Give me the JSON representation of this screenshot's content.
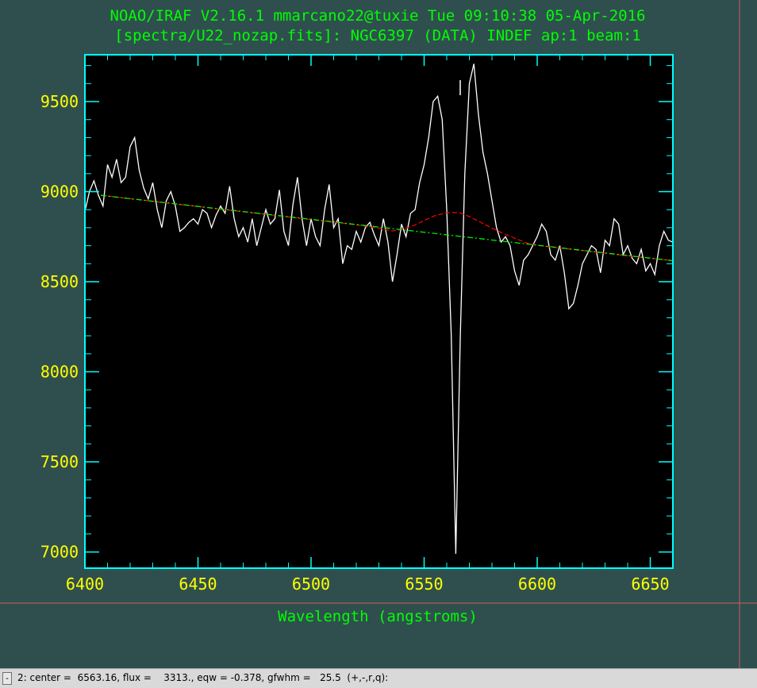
{
  "window": {
    "title_line1": "NOAO/IRAF V2.16.1 mmarcano22@tuxie Tue 09:10:38 05-Apr-2016",
    "title_line2": "[spectra/U22_nozap.fits]: NGC6397 (DATA) INDEF ap:1 beam:1",
    "background_color": "#2f4f4f",
    "frame_color": "#00ffff",
    "label_color": "#ffff00",
    "title_color": "#00ff00"
  },
  "status": {
    "menu_label": "-",
    "text": "2: center =  6563.16, flux =    3313., eqw = -0.378, gfwhm =   25.5  (+,-,r,q):"
  },
  "chart_data": {
    "type": "line",
    "title": "NOAO/IRAF V2.16.1 mmarcano22@tuxie Tue 09:10:38 05-Apr-2016",
    "subtitle": "[spectra/U22_nozap.fits]: NGC6397 (DATA) INDEF ap:1 beam:1",
    "xlabel": "Wavelength (angstroms)",
    "ylabel": "",
    "xlim": [
      6400,
      6660
    ],
    "ylim": [
      6910,
      9760
    ],
    "xticks": [
      6400,
      6450,
      6500,
      6550,
      6600,
      6650
    ],
    "yticks": [
      7000,
      7500,
      8000,
      8500,
      9000,
      9500
    ],
    "grid": false,
    "marker_x": 6563.16,
    "series": [
      {
        "name": "",
        "color": "#ffffff",
        "style": "solid",
        "points": [
          [
            6400,
            8890
          ],
          [
            6402,
            9000
          ],
          [
            6404,
            9060
          ],
          [
            6406,
            8980
          ],
          [
            6408,
            8920
          ],
          [
            6410,
            9150
          ],
          [
            6412,
            9080
          ],
          [
            6414,
            9180
          ],
          [
            6416,
            9050
          ],
          [
            6418,
            9080
          ],
          [
            6420,
            9250
          ],
          [
            6422,
            9300
          ],
          [
            6424,
            9120
          ],
          [
            6426,
            9020
          ],
          [
            6428,
            8960
          ],
          [
            6430,
            9050
          ],
          [
            6432,
            8900
          ],
          [
            6434,
            8800
          ],
          [
            6436,
            8950
          ],
          [
            6438,
            9000
          ],
          [
            6440,
            8920
          ],
          [
            6442,
            8780
          ],
          [
            6444,
            8800
          ],
          [
            6446,
            8830
          ],
          [
            6448,
            8850
          ],
          [
            6450,
            8820
          ],
          [
            6452,
            8900
          ],
          [
            6454,
            8880
          ],
          [
            6456,
            8800
          ],
          [
            6458,
            8870
          ],
          [
            6460,
            8920
          ],
          [
            6462,
            8880
          ],
          [
            6464,
            9030
          ],
          [
            6466,
            8850
          ],
          [
            6468,
            8750
          ],
          [
            6470,
            8800
          ],
          [
            6472,
            8720
          ],
          [
            6474,
            8850
          ],
          [
            6476,
            8700
          ],
          [
            6478,
            8800
          ],
          [
            6480,
            8900
          ],
          [
            6482,
            8820
          ],
          [
            6484,
            8850
          ],
          [
            6486,
            9010
          ],
          [
            6488,
            8780
          ],
          [
            6490,
            8700
          ],
          [
            6492,
            8930
          ],
          [
            6494,
            9080
          ],
          [
            6496,
            8850
          ],
          [
            6498,
            8700
          ],
          [
            6500,
            8850
          ],
          [
            6502,
            8750
          ],
          [
            6504,
            8700
          ],
          [
            6506,
            8900
          ],
          [
            6508,
            9040
          ],
          [
            6510,
            8800
          ],
          [
            6512,
            8850
          ],
          [
            6514,
            8600
          ],
          [
            6516,
            8700
          ],
          [
            6518,
            8680
          ],
          [
            6520,
            8780
          ],
          [
            6522,
            8720
          ],
          [
            6524,
            8800
          ],
          [
            6526,
            8830
          ],
          [
            6528,
            8760
          ],
          [
            6530,
            8700
          ],
          [
            6532,
            8850
          ],
          [
            6534,
            8720
          ],
          [
            6536,
            8500
          ],
          [
            6538,
            8650
          ],
          [
            6540,
            8820
          ],
          [
            6542,
            8750
          ],
          [
            6544,
            8880
          ],
          [
            6546,
            8900
          ],
          [
            6548,
            9050
          ],
          [
            6550,
            9150
          ],
          [
            6552,
            9300
          ],
          [
            6554,
            9500
          ],
          [
            6556,
            9530
          ],
          [
            6558,
            9400
          ],
          [
            6560,
            8900
          ],
          [
            6562,
            8200
          ],
          [
            6564,
            6990
          ],
          [
            6566,
            8200
          ],
          [
            6568,
            9100
          ],
          [
            6570,
            9600
          ],
          [
            6572,
            9710
          ],
          [
            6574,
            9430
          ],
          [
            6576,
            9220
          ],
          [
            6578,
            9100
          ],
          [
            6580,
            8950
          ],
          [
            6582,
            8800
          ],
          [
            6584,
            8720
          ],
          [
            6586,
            8750
          ],
          [
            6588,
            8700
          ],
          [
            6590,
            8560
          ],
          [
            6592,
            8480
          ],
          [
            6594,
            8620
          ],
          [
            6596,
            8650
          ],
          [
            6598,
            8700
          ],
          [
            6600,
            8750
          ],
          [
            6602,
            8820
          ],
          [
            6604,
            8780
          ],
          [
            6606,
            8650
          ],
          [
            6608,
            8620
          ],
          [
            6610,
            8700
          ],
          [
            6612,
            8550
          ],
          [
            6614,
            8350
          ],
          [
            6616,
            8380
          ],
          [
            6618,
            8480
          ],
          [
            6620,
            8600
          ],
          [
            6622,
            8650
          ],
          [
            6624,
            8700
          ],
          [
            6626,
            8680
          ],
          [
            6628,
            8550
          ],
          [
            6630,
            8730
          ],
          [
            6632,
            8700
          ],
          [
            6634,
            8850
          ],
          [
            6636,
            8820
          ],
          [
            6638,
            8650
          ],
          [
            6640,
            8700
          ],
          [
            6642,
            8630
          ],
          [
            6644,
            8600
          ],
          [
            6646,
            8680
          ],
          [
            6648,
            8560
          ],
          [
            6650,
            8600
          ],
          [
            6652,
            8540
          ],
          [
            6654,
            8700
          ],
          [
            6656,
            8780
          ],
          [
            6658,
            8730
          ],
          [
            6660,
            8720
          ]
        ]
      },
      {
        "name": "",
        "color": "#ff0000",
        "style": "dashed",
        "points": [
          [
            6407,
            8980
          ],
          [
            6420,
            8961
          ],
          [
            6440,
            8932
          ],
          [
            6460,
            8903
          ],
          [
            6480,
            8874
          ],
          [
            6500,
            8845
          ],
          [
            6520,
            8816
          ],
          [
            6530,
            8797
          ],
          [
            6536,
            8782
          ],
          [
            6540,
            8790
          ],
          [
            6545,
            8810
          ],
          [
            6550,
            8840
          ],
          [
            6555,
            8868
          ],
          [
            6560,
            8882
          ],
          [
            6563,
            8885
          ],
          [
            6566,
            8881
          ],
          [
            6570,
            8862
          ],
          [
            6575,
            8830
          ],
          [
            6580,
            8798
          ],
          [
            6585,
            8768
          ],
          [
            6590,
            8742
          ],
          [
            6595,
            8716
          ],
          [
            6600,
            8702
          ],
          [
            6620,
            8673
          ],
          [
            6640,
            8644
          ],
          [
            6660,
            8617
          ]
        ]
      },
      {
        "name": "",
        "color": "#00ff00",
        "style": "dashdot",
        "points": [
          [
            6407,
            8980
          ],
          [
            6660,
            8617
          ]
        ]
      }
    ]
  }
}
